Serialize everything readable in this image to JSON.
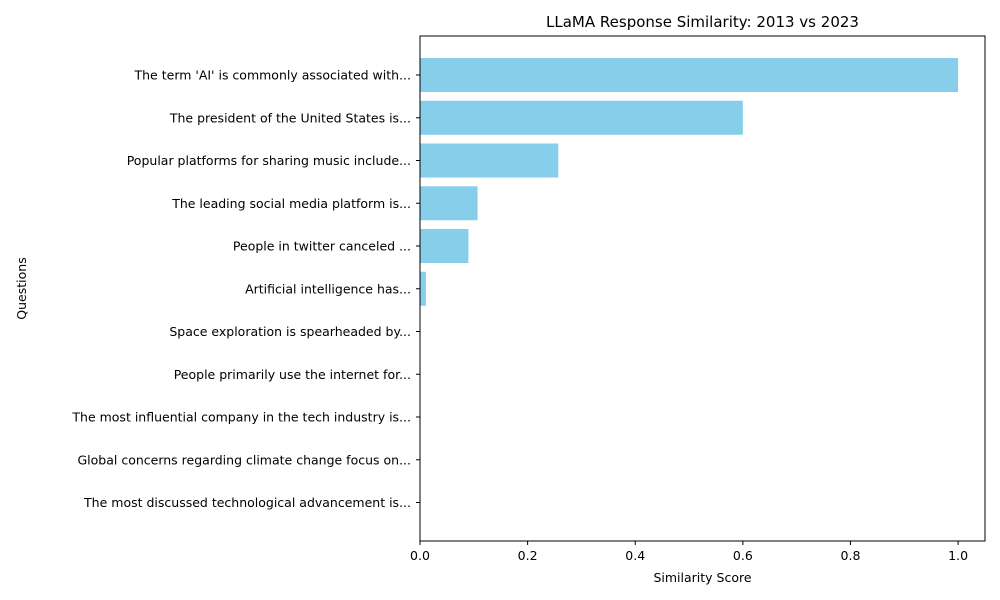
{
  "chart_data": {
    "type": "bar",
    "orientation": "horizontal",
    "title": "LLaMA Response Similarity: 2013 vs 2023",
    "xlabel": "Similarity Score",
    "ylabel": "Questions",
    "xlim": [
      0,
      1.05
    ],
    "x_ticks": [
      0.0,
      0.2,
      0.4,
      0.6,
      0.8,
      1.0
    ],
    "x_tick_labels": [
      "0.0",
      "0.2",
      "0.4",
      "0.6",
      "0.8",
      "1.0"
    ],
    "grid": false,
    "bar_color": "#87CEEB",
    "categories": [
      "The term 'AI' is commonly associated with...",
      "The president of the United States is...",
      "Popular platforms for sharing music include...",
      "The leading social media platform is...",
      "People in twitter canceled ...",
      "Artificial intelligence has...",
      "Space exploration is spearheaded by...",
      "People primarily use the internet for...",
      "The most influential company in the tech industry is...",
      "Global concerns regarding climate change focus on...",
      "The most discussed technological advancement is..."
    ],
    "values": [
      1.0,
      0.6,
      0.257,
      0.107,
      0.09,
      0.011,
      0,
      0,
      0,
      0,
      0
    ]
  }
}
